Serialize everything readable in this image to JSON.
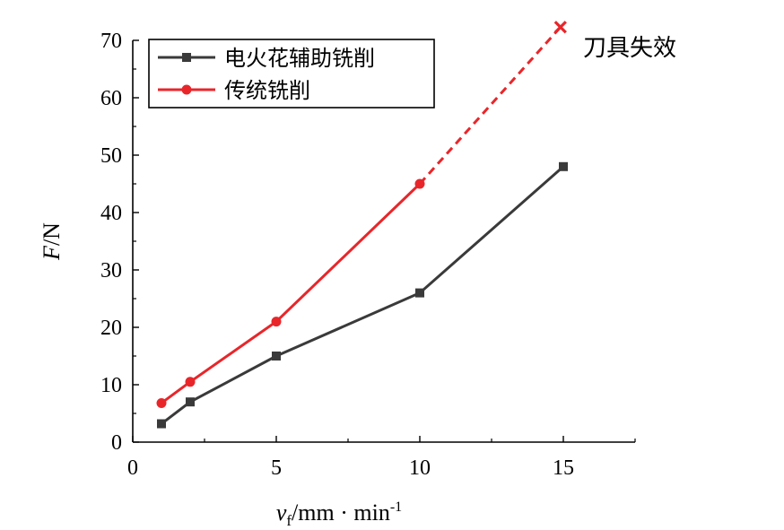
{
  "chart_data": {
    "type": "line",
    "xlabel": {
      "var": "v",
      "sub": "f",
      "unit": "/mm · min",
      "sup": "-1"
    },
    "ylabel": {
      "var": "F",
      "unit": "/N"
    },
    "xlim": [
      0,
      17.5
    ],
    "ylim": [
      0,
      70
    ],
    "xticks": [
      0,
      5,
      10,
      15
    ],
    "yticks": [
      0,
      10,
      20,
      30,
      40,
      50,
      60,
      70
    ],
    "grid": false,
    "legend_position": "top-left",
    "series": [
      {
        "name": "电火花辅助铣削",
        "color": "#3a3a3a",
        "marker": "square",
        "x": [
          1,
          2,
          5,
          10,
          15
        ],
        "y": [
          3.2,
          7,
          15,
          26,
          48
        ]
      },
      {
        "name": "传统铣削",
        "color": "#e8262a",
        "marker": "circle",
        "x": [
          1,
          2,
          5,
          10
        ],
        "y": [
          6.8,
          10.5,
          21,
          45
        ],
        "extension": {
          "x": [
            10,
            14.9
          ],
          "y": [
            45,
            72.3
          ],
          "style": "dashed",
          "end_marker": "x"
        }
      }
    ],
    "annotations": [
      {
        "text": "刀具失效"
      }
    ]
  }
}
